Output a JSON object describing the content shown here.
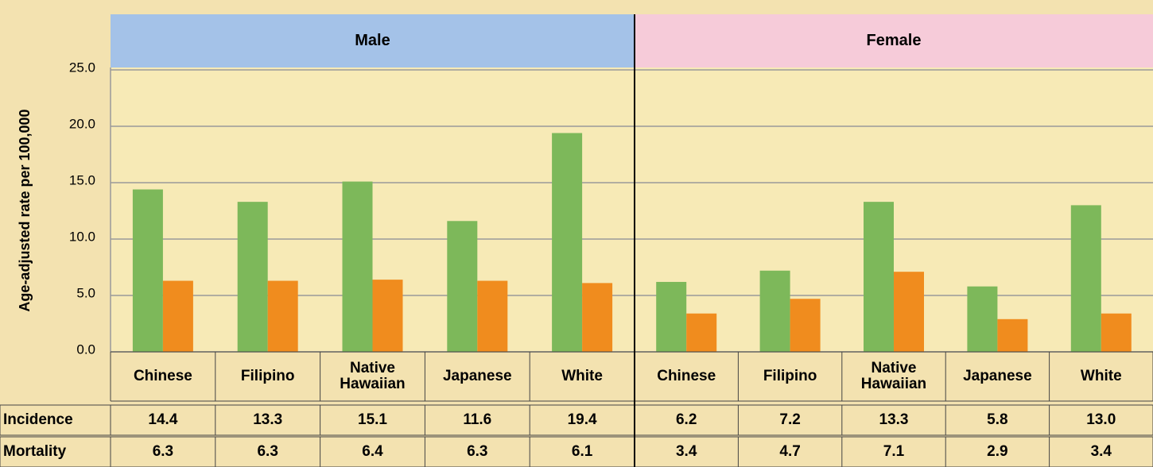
{
  "chart_data": {
    "type": "bar",
    "y_label": "Age-adjusted rate per 100,000",
    "groups": [
      {
        "name": "Male",
        "color": "#a4c2e8",
        "categories": [
          "Chinese",
          "Filipino",
          "Native Hawaiian",
          "Japanese",
          "White"
        ]
      },
      {
        "name": "Female",
        "color": "#f6cbd9",
        "categories": [
          "Chinese",
          "Filipino",
          "Native Hawaiian",
          "Japanese",
          "White"
        ]
      }
    ],
    "series": [
      {
        "name": "Incidence",
        "color": "#7db85a",
        "values": [
          14.4,
          13.3,
          15.1,
          11.6,
          19.4,
          6.2,
          7.2,
          13.3,
          5.8,
          13.0
        ],
        "value_labels": [
          "14.4",
          "13.3",
          "15.1",
          "11.6",
          "19.4",
          "6.2",
          "7.2",
          "13.3",
          "5.8",
          "13.0"
        ]
      },
      {
        "name": "Mortality",
        "color": "#f08c1e",
        "values": [
          6.3,
          6.3,
          6.4,
          6.3,
          6.1,
          3.4,
          4.7,
          7.1,
          2.9,
          3.4
        ],
        "value_labels": [
          "6.3",
          "6.3",
          "6.4",
          "6.3",
          "6.1",
          "3.4",
          "4.7",
          "7.1",
          "2.9",
          "3.4"
        ]
      }
    ],
    "ylim": [
      0,
      25
    ],
    "yticks": [
      {
        "value": 0,
        "label": "0.0"
      },
      {
        "value": 5,
        "label": "5.0"
      },
      {
        "value": 10,
        "label": "10.0"
      },
      {
        "value": 15,
        "label": "15.0"
      },
      {
        "value": 20,
        "label": "20.0"
      },
      {
        "value": 25,
        "label": "25.0"
      }
    ],
    "grid": true
  }
}
